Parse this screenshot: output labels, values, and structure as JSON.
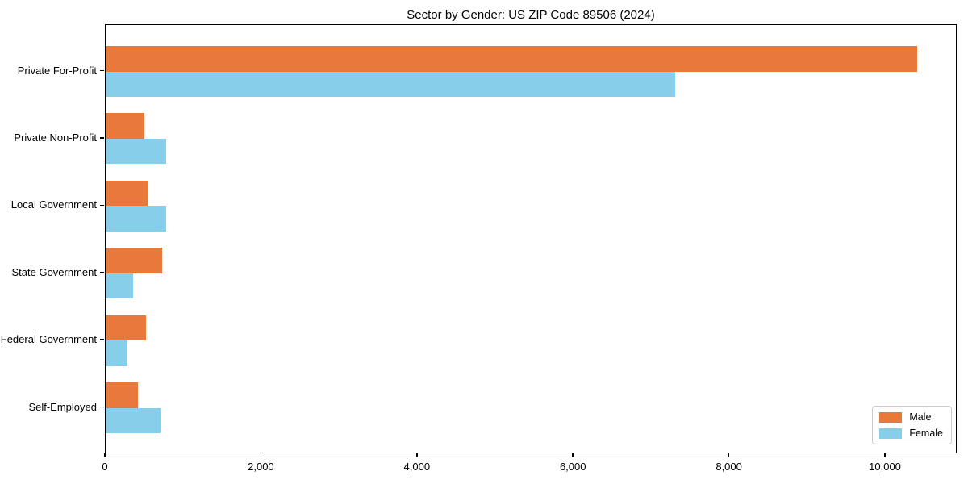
{
  "title": "Sector by Gender: US ZIP Code 89506 (2024)",
  "colors": {
    "male": "#e8793b",
    "female": "#87ceeb",
    "axis": "#000000",
    "legend_border": "#cccccc",
    "background": "#ffffff"
  },
  "legend": {
    "position": "lower right",
    "items": [
      {
        "label": "Male",
        "color": "#e8793b"
      },
      {
        "label": "Female",
        "color": "#87ceeb"
      }
    ]
  },
  "chart_data": {
    "type": "bar",
    "orientation": "horizontal",
    "title": "Sector by Gender: US ZIP Code 89506 (2024)",
    "categories": [
      "Private For-Profit",
      "Private Non-Profit",
      "Local Government",
      "State Government",
      "Federal Government",
      "Self-Employed"
    ],
    "series": [
      {
        "name": "Male",
        "color": "#e8793b",
        "values": [
          10400,
          500,
          540,
          720,
          520,
          410
        ]
      },
      {
        "name": "Female",
        "color": "#87ceeb",
        "values": [
          7300,
          780,
          780,
          350,
          280,
          700
        ]
      }
    ],
    "xlabel": "",
    "ylabel": "",
    "xlim": [
      0,
      10920
    ],
    "x_ticks": [
      0,
      2000,
      4000,
      6000,
      8000,
      10000
    ],
    "x_tick_labels": [
      "0",
      "2,000",
      "4,000",
      "6,000",
      "8,000",
      "10,000"
    ],
    "grid": false,
    "legend_position": "lower right"
  }
}
